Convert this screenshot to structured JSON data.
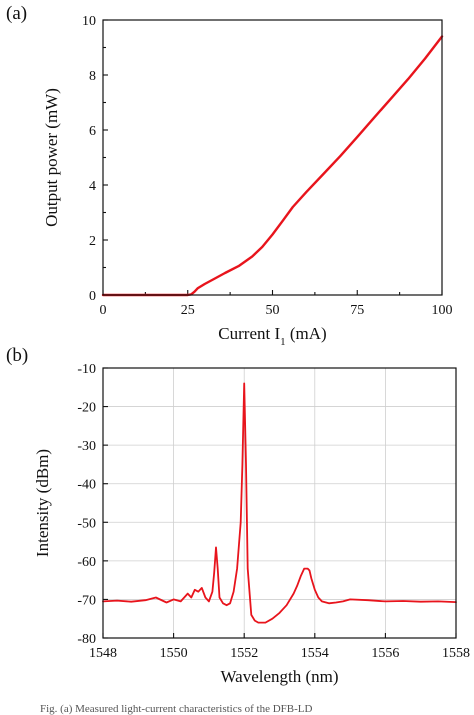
{
  "chart_data": [
    {
      "type": "line",
      "panel_label": "(a)",
      "xlabel": "Current I",
      "xlabel_sub": "1",
      "xlabel_unit": " (mA)",
      "ylabel": "Output power (mW)",
      "xlim": [
        0,
        100
      ],
      "ylim": [
        0,
        10
      ],
      "xticks": [
        0,
        25,
        50,
        75,
        100
      ],
      "yticks": [
        0,
        2,
        4,
        6,
        8,
        10
      ],
      "grid": false,
      "series_color": "#e8141c",
      "series": [
        {
          "x": [
            0,
            10,
            20,
            25,
            26,
            27,
            28,
            30,
            33,
            36,
            40,
            44,
            47,
            50,
            53,
            56,
            60,
            65,
            70,
            75,
            80,
            85,
            90,
            95,
            100
          ],
          "y": [
            0,
            0,
            0,
            0,
            0.02,
            0.12,
            0.25,
            0.4,
            0.6,
            0.8,
            1.05,
            1.4,
            1.75,
            2.2,
            2.7,
            3.2,
            3.75,
            4.4,
            5.05,
            5.75,
            6.45,
            7.15,
            7.85,
            8.6,
            9.4
          ]
        }
      ]
    },
    {
      "type": "line",
      "panel_label": "(b)",
      "xlabel": "Wavelength (nm)",
      "ylabel": "Intensity (dBm)",
      "xlim": [
        1548,
        1558
      ],
      "ylim": [
        -80,
        -10
      ],
      "xticks": [
        1548,
        1550,
        1552,
        1554,
        1556,
        1558
      ],
      "yticks": [
        -10,
        -20,
        -30,
        -40,
        -50,
        -60,
        -70,
        -80
      ],
      "grid": true,
      "series_color": "#e8141c",
      "series": [
        {
          "x": [
            1548.0,
            1548.4,
            1548.8,
            1549.2,
            1549.5,
            1549.8,
            1550.0,
            1550.2,
            1550.4,
            1550.5,
            1550.6,
            1550.7,
            1550.8,
            1550.9,
            1551.0,
            1551.1,
            1551.15,
            1551.2,
            1551.25,
            1551.3,
            1551.4,
            1551.5,
            1551.6,
            1551.7,
            1551.8,
            1551.9,
            1551.95,
            1552.0,
            1552.05,
            1552.1,
            1552.2,
            1552.3,
            1552.4,
            1552.6,
            1552.8,
            1553.0,
            1553.2,
            1553.4,
            1553.5,
            1553.6,
            1553.7,
            1553.8,
            1553.85,
            1553.9,
            1554.0,
            1554.1,
            1554.2,
            1554.4,
            1554.6,
            1554.8,
            1555.0,
            1555.5,
            1556.0,
            1556.5,
            1557.0,
            1557.5,
            1558.0
          ],
          "y": [
            -70.5,
            -70.3,
            -70.6,
            -70.2,
            -69.5,
            -70.8,
            -70.0,
            -70.5,
            -68.5,
            -69.5,
            -67.5,
            -68.0,
            -67.0,
            -69.5,
            -70.5,
            -68.0,
            -63.0,
            -56.5,
            -62.0,
            -69.5,
            -71.0,
            -71.5,
            -71.0,
            -68.0,
            -62.0,
            -50.0,
            -35.0,
            -14.0,
            -35.0,
            -62.0,
            -74.0,
            -75.5,
            -76.0,
            -76.0,
            -75.0,
            -73.5,
            -71.5,
            -68.5,
            -66.5,
            -64.0,
            -62.0,
            -62.0,
            -62.5,
            -64.5,
            -67.5,
            -69.5,
            -70.5,
            -71.0,
            -70.8,
            -70.5,
            -70.0,
            -70.2,
            -70.5,
            -70.4,
            -70.6,
            -70.5,
            -70.7
          ]
        }
      ]
    }
  ],
  "caption_fragment": "Fig. (a) Measured light-current characteristics of the DFB-LD"
}
